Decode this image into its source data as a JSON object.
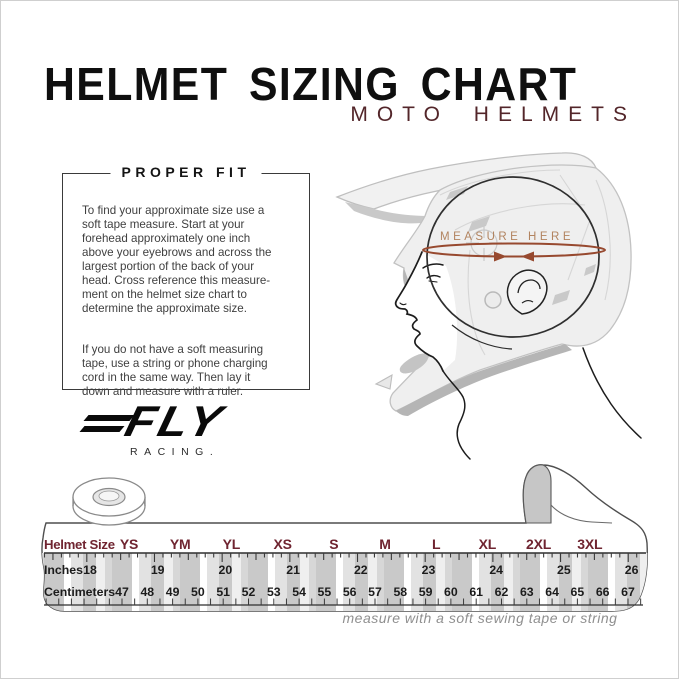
{
  "header": {
    "title": "HELMET SIZING CHART",
    "subtitle": "MOTO HELMETS"
  },
  "proper_fit": {
    "heading": "PROPER FIT",
    "body1": "To find your approximate size use a\nsoft tape measure. Start at your\nforehead approximately one inch\nabove your eyebrows and across the\nlargest portion of the back of your\nhead. Cross reference this measure-\nment on the helmet size chart to\ndetermine the approximate size.",
    "body2": "If you do not have a soft measuring\ntape, use a string or phone charging\ncord in the same way. Then lay it\ndown and measure with a ruler."
  },
  "brand": {
    "logo_text": "FLY",
    "logo_subtext": "RACING."
  },
  "illustration": {
    "measure_label": "MEASURE HERE"
  },
  "chart_data": {
    "type": "table",
    "row_labels": [
      "Helmet Size",
      "Inches",
      "Centimeters"
    ],
    "sizes": [
      "YS",
      "YM",
      "YL",
      "XS",
      "S",
      "M",
      "L",
      "XL",
      "2XL",
      "3XL"
    ],
    "inches": [
      18,
      19,
      20,
      21,
      22,
      23,
      24,
      25,
      26
    ],
    "centimeters": [
      47,
      48,
      49,
      50,
      51,
      52,
      53,
      54,
      55,
      56,
      57,
      58,
      59,
      60,
      61,
      62,
      63,
      64,
      65,
      66,
      67
    ],
    "caption": "measure with a soft sewing tape or string"
  },
  "colors": {
    "maroon": "#6f2430",
    "subtitle_maroon": "#53262a",
    "measure_text": "#b28460",
    "measure_arrow": "#97492f"
  }
}
